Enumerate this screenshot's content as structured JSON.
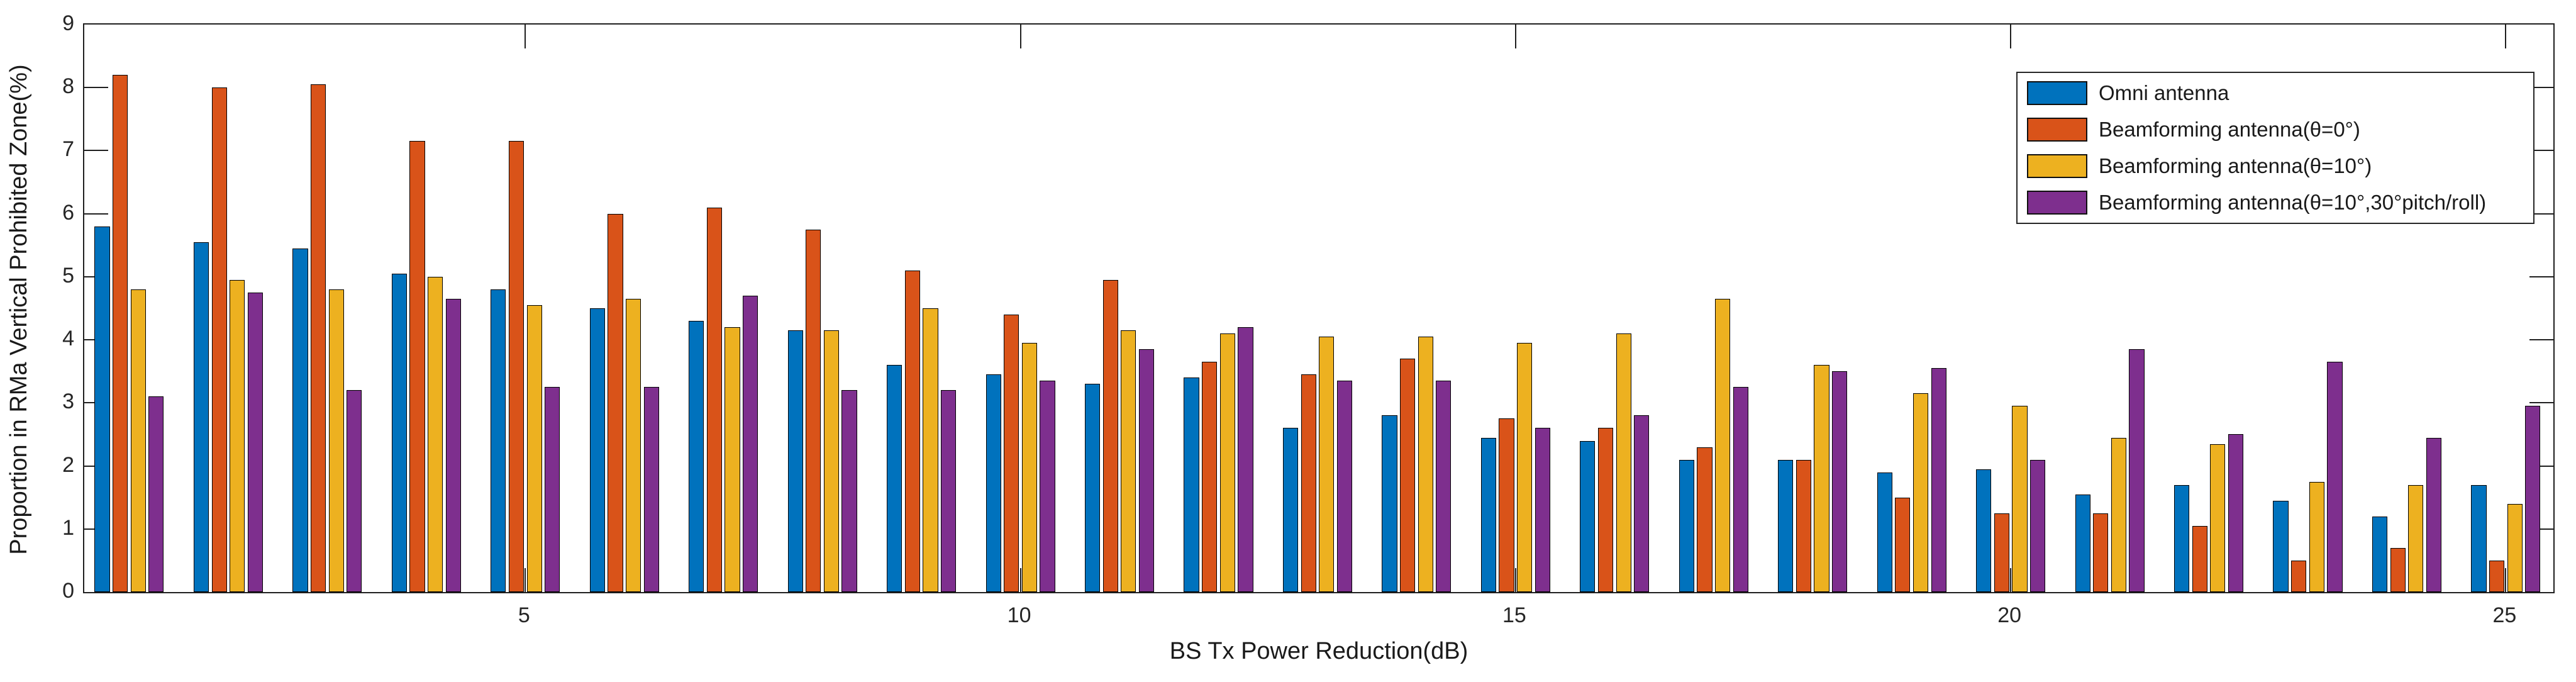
{
  "chart_data": {
    "type": "bar",
    "title": "",
    "xlabel": "BS Tx Power Reduction(dB)",
    "ylabel": "Proportion in RMa Vertical Prohibited Zone(%)",
    "x": [
      1,
      2,
      3,
      4,
      5,
      6,
      7,
      8,
      9,
      10,
      11,
      12,
      13,
      14,
      15,
      16,
      17,
      18,
      19,
      20,
      21,
      22,
      23,
      24,
      25
    ],
    "series": [
      {
        "name": "Omni antenna",
        "color": "#0072BD",
        "values": [
          5.8,
          5.55,
          5.45,
          5.05,
          4.8,
          4.5,
          4.3,
          4.15,
          3.6,
          3.45,
          3.3,
          3.4,
          2.6,
          2.8,
          2.45,
          2.4,
          2.1,
          2.1,
          1.9,
          1.95,
          1.55,
          1.7,
          1.45,
          1.2,
          1.7
        ]
      },
      {
        "name": "Beamforming antenna(θ=0°)",
        "color": "#D95319",
        "values": [
          8.2,
          8.0,
          8.05,
          7.15,
          7.15,
          6.0,
          6.1,
          5.75,
          5.1,
          4.4,
          4.95,
          3.65,
          3.45,
          3.7,
          2.75,
          2.6,
          2.3,
          2.1,
          1.5,
          1.25,
          1.25,
          1.05,
          0.5,
          0.7,
          0.5
        ]
      },
      {
        "name": "Beamforming antenna(θ=10°)",
        "color": "#EDB120",
        "values": [
          4.8,
          4.95,
          4.8,
          5.0,
          4.55,
          4.65,
          4.2,
          4.15,
          4.5,
          3.95,
          4.15,
          4.1,
          4.05,
          4.05,
          3.95,
          4.1,
          4.65,
          3.6,
          3.15,
          2.95,
          2.45,
          2.35,
          1.75,
          1.7,
          1.4
        ]
      },
      {
        "name": "Beamforming antenna(θ=10°,30°pitch/roll)",
        "color": "#7E2F8E",
        "values": [
          3.1,
          4.75,
          3.2,
          4.65,
          3.25,
          3.25,
          4.7,
          3.2,
          3.2,
          3.35,
          3.85,
          4.2,
          3.35,
          3.35,
          2.6,
          2.8,
          3.25,
          3.5,
          3.55,
          2.1,
          3.85,
          2.5,
          3.65,
          2.45,
          2.95
        ]
      }
    ],
    "xticks": [
      5,
      10,
      15,
      20,
      25
    ],
    "yticks": [
      0,
      1,
      2,
      3,
      4,
      5,
      6,
      7,
      8,
      9
    ],
    "xlim": [
      0.546,
      25.48
    ],
    "ylim": [
      0,
      9
    ],
    "grid": false,
    "legend_position": "northeast-inside",
    "bar_edge_color": "#000000",
    "axis_color": "#1f1f1f",
    "background_color": "#ffffff"
  }
}
